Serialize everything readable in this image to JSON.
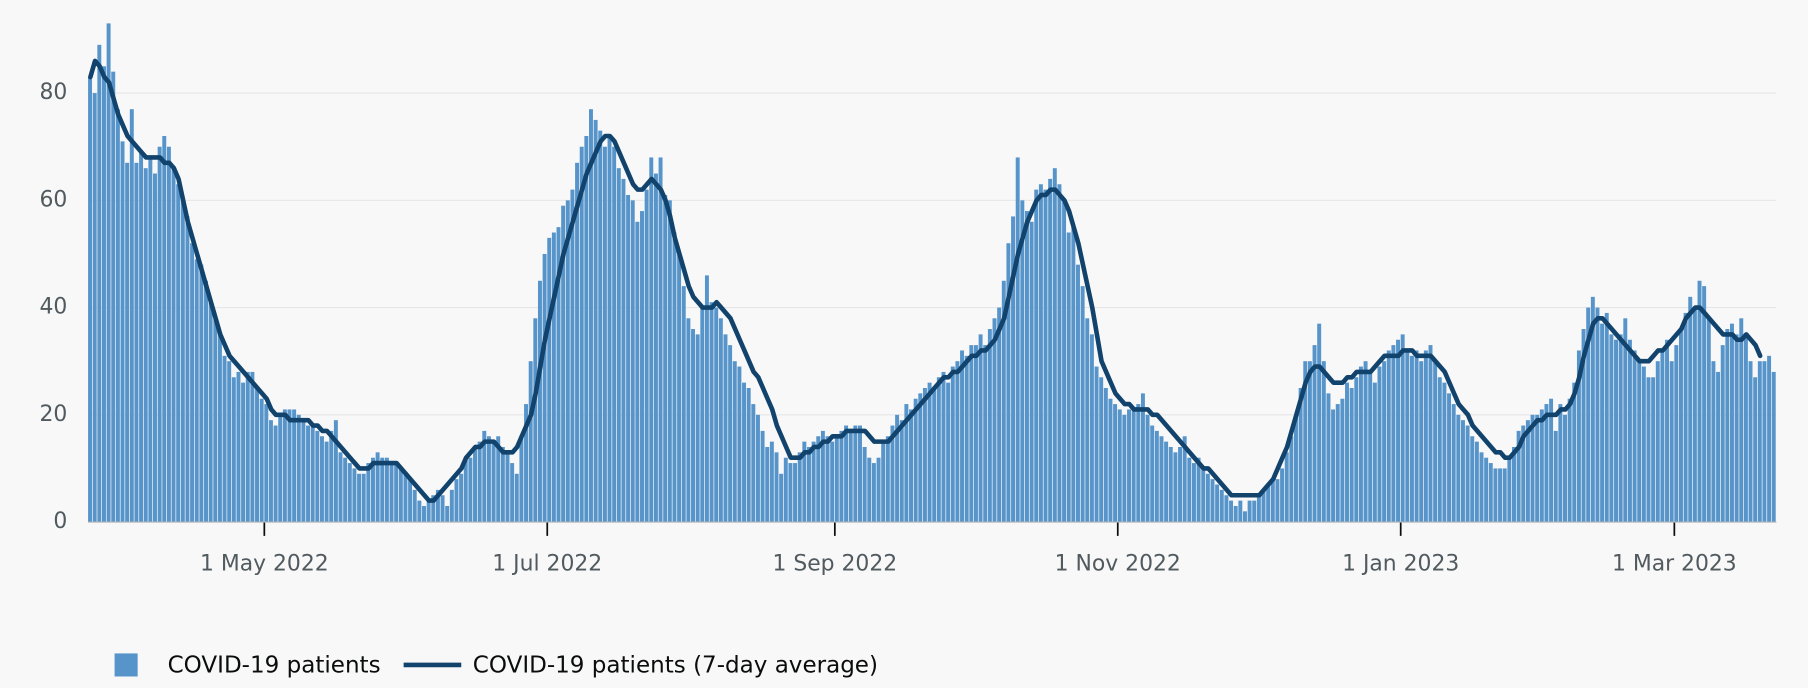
{
  "chart_data": {
    "type": "bar-line",
    "x": [
      "2022-03-24",
      "2022-03-25",
      "2022-03-26",
      "2022-03-27",
      "2022-03-28",
      "2022-03-29",
      "2022-03-30",
      "2022-03-31",
      "2022-04-01",
      "2022-04-02",
      "2022-04-03",
      "2022-04-04",
      "2022-04-05",
      "2022-04-06",
      "2022-04-07",
      "2022-04-08",
      "2022-04-09",
      "2022-04-10",
      "2022-04-11",
      "2022-04-12",
      "2022-04-13",
      "2022-04-14",
      "2022-04-15",
      "2022-04-16",
      "2022-04-17",
      "2022-04-18",
      "2022-04-19",
      "2022-04-20",
      "2022-04-21",
      "2022-04-22",
      "2022-04-23",
      "2022-04-24",
      "2022-04-25",
      "2022-04-26",
      "2022-04-27",
      "2022-04-28",
      "2022-04-29",
      "2022-04-30",
      "2022-05-01",
      "2022-05-02",
      "2022-05-03",
      "2022-05-04",
      "2022-05-05",
      "2022-05-06",
      "2022-05-07",
      "2022-05-08",
      "2022-05-09",
      "2022-05-10",
      "2022-05-11",
      "2022-05-12",
      "2022-05-13",
      "2022-05-14",
      "2022-05-15",
      "2022-05-16",
      "2022-05-17",
      "2022-05-18",
      "2022-05-19",
      "2022-05-20",
      "2022-05-21",
      "2022-05-22",
      "2022-05-23",
      "2022-05-24",
      "2022-05-25",
      "2022-05-26",
      "2022-05-27",
      "2022-05-28",
      "2022-05-29",
      "2022-05-30",
      "2022-05-31",
      "2022-06-01",
      "2022-06-02",
      "2022-06-03",
      "2022-06-04",
      "2022-06-05",
      "2022-06-06",
      "2022-06-07",
      "2022-06-08",
      "2022-06-09",
      "2022-06-10",
      "2022-06-11",
      "2022-06-12",
      "2022-06-13",
      "2022-06-14",
      "2022-06-15",
      "2022-06-16",
      "2022-06-17",
      "2022-06-18",
      "2022-06-19",
      "2022-06-20",
      "2022-06-21",
      "2022-06-22",
      "2022-06-23",
      "2022-06-24",
      "2022-06-25",
      "2022-06-26",
      "2022-06-27",
      "2022-06-28",
      "2022-06-29",
      "2022-06-30",
      "2022-07-01",
      "2022-07-02",
      "2022-07-03",
      "2022-07-04",
      "2022-07-05",
      "2022-07-06",
      "2022-07-07",
      "2022-07-08",
      "2022-07-09",
      "2022-07-10",
      "2022-07-11",
      "2022-07-12",
      "2022-07-13",
      "2022-07-14",
      "2022-07-15",
      "2022-07-16",
      "2022-07-17",
      "2022-07-18",
      "2022-07-19",
      "2022-07-20",
      "2022-07-21",
      "2022-07-22",
      "2022-07-23",
      "2022-07-24",
      "2022-07-25",
      "2022-07-26",
      "2022-07-27",
      "2022-07-28",
      "2022-07-29",
      "2022-07-30",
      "2022-07-31",
      "2022-08-01",
      "2022-08-02",
      "2022-08-03",
      "2022-08-04",
      "2022-08-05",
      "2022-08-06",
      "2022-08-07",
      "2022-08-08",
      "2022-08-09",
      "2022-08-10",
      "2022-08-11",
      "2022-08-12",
      "2022-08-13",
      "2022-08-14",
      "2022-08-15",
      "2022-08-16",
      "2022-08-17",
      "2022-08-18",
      "2022-08-19",
      "2022-08-20",
      "2022-08-21",
      "2022-08-22",
      "2022-08-23",
      "2022-08-24",
      "2022-08-25",
      "2022-08-26",
      "2022-08-27",
      "2022-08-28",
      "2022-08-29",
      "2022-08-30",
      "2022-08-31",
      "2022-09-01",
      "2022-09-02",
      "2022-09-03",
      "2022-09-04",
      "2022-09-05",
      "2022-09-06",
      "2022-09-07",
      "2022-09-08",
      "2022-09-09",
      "2022-09-10",
      "2022-09-11",
      "2022-09-12",
      "2022-09-13",
      "2022-09-14",
      "2022-09-15",
      "2022-09-16",
      "2022-09-17",
      "2022-09-18",
      "2022-09-19",
      "2022-09-20",
      "2022-09-21",
      "2022-09-22",
      "2022-09-23",
      "2022-09-24",
      "2022-09-25",
      "2022-09-26",
      "2022-09-27",
      "2022-09-28",
      "2022-09-29",
      "2022-09-30",
      "2022-10-01",
      "2022-10-02",
      "2022-10-03",
      "2022-10-04",
      "2022-10-05",
      "2022-10-06",
      "2022-10-07",
      "2022-10-08",
      "2022-10-09",
      "2022-10-10",
      "2022-10-11",
      "2022-10-12",
      "2022-10-13",
      "2022-10-14",
      "2022-10-15",
      "2022-10-16",
      "2022-10-17",
      "2022-10-18",
      "2022-10-19",
      "2022-10-20",
      "2022-10-21",
      "2022-10-22",
      "2022-10-23",
      "2022-10-24",
      "2022-10-25",
      "2022-10-26",
      "2022-10-27",
      "2022-10-28",
      "2022-10-29",
      "2022-10-30",
      "2022-10-31",
      "2022-11-01",
      "2022-11-02",
      "2022-11-03",
      "2022-11-04",
      "2022-11-05",
      "2022-11-06",
      "2022-11-07",
      "2022-11-08",
      "2022-11-09",
      "2022-11-10",
      "2022-11-11",
      "2022-11-12",
      "2022-11-13",
      "2022-11-14",
      "2022-11-15",
      "2022-11-16",
      "2022-11-17",
      "2022-11-18",
      "2022-11-19",
      "2022-11-20",
      "2022-11-21",
      "2022-11-22",
      "2022-11-23",
      "2022-11-24",
      "2022-11-25",
      "2022-11-26",
      "2022-11-27",
      "2022-11-28",
      "2022-11-29",
      "2022-11-30",
      "2022-12-01",
      "2022-12-02",
      "2022-12-03",
      "2022-12-04",
      "2022-12-05",
      "2022-12-06",
      "2022-12-07",
      "2022-12-08",
      "2022-12-09",
      "2022-12-10",
      "2022-12-11",
      "2022-12-12",
      "2022-12-13",
      "2022-12-14",
      "2022-12-15",
      "2022-12-16",
      "2022-12-17",
      "2022-12-18",
      "2022-12-19",
      "2022-12-20",
      "2022-12-21",
      "2022-12-22",
      "2022-12-23",
      "2022-12-24",
      "2022-12-25",
      "2022-12-26",
      "2022-12-27",
      "2022-12-28",
      "2022-12-29",
      "2022-12-30",
      "2022-12-31",
      "2023-01-01",
      "2023-01-02",
      "2023-01-03",
      "2023-01-04",
      "2023-01-05",
      "2023-01-06",
      "2023-01-07",
      "2023-01-08",
      "2023-01-09",
      "2023-01-10",
      "2023-01-11",
      "2023-01-12",
      "2023-01-13",
      "2023-01-14",
      "2023-01-15",
      "2023-01-16",
      "2023-01-17",
      "2023-01-18",
      "2023-01-19",
      "2023-01-20",
      "2023-01-21",
      "2023-01-22",
      "2023-01-23",
      "2023-01-24",
      "2023-01-25",
      "2023-01-26",
      "2023-01-27",
      "2023-01-28",
      "2023-01-29",
      "2023-01-30",
      "2023-01-31",
      "2023-02-01",
      "2023-02-02",
      "2023-02-03",
      "2023-02-04",
      "2023-02-05",
      "2023-02-06",
      "2023-02-07",
      "2023-02-08",
      "2023-02-09",
      "2023-02-10",
      "2023-02-11",
      "2023-02-12",
      "2023-02-13",
      "2023-02-14",
      "2023-02-15",
      "2023-02-16",
      "2023-02-17",
      "2023-02-18",
      "2023-02-19",
      "2023-02-20",
      "2023-02-21",
      "2023-02-22",
      "2023-02-23",
      "2023-02-24",
      "2023-02-25",
      "2023-02-26",
      "2023-02-27",
      "2023-02-28",
      "2023-03-01",
      "2023-03-02",
      "2023-03-03",
      "2023-03-04",
      "2023-03-05",
      "2023-03-06",
      "2023-03-07",
      "2023-03-08",
      "2023-03-09",
      "2023-03-10",
      "2023-03-11",
      "2023-03-12",
      "2023-03-13",
      "2023-03-14",
      "2023-03-15",
      "2023-03-16",
      "2023-03-17",
      "2023-03-18",
      "2023-03-19",
      "2023-03-20",
      "2023-03-21",
      "2023-03-22"
    ],
    "series": [
      {
        "name": "COVID-19 patients",
        "type": "bar",
        "color": "#5694ca",
        "values": [
          83,
          80,
          89,
          85,
          93,
          84,
          77,
          71,
          67,
          77,
          67,
          69,
          66,
          68,
          65,
          70,
          72,
          70,
          66,
          63,
          60,
          57,
          52,
          49,
          48,
          45,
          41,
          38,
          35,
          31,
          30,
          27,
          28,
          26,
          28,
          28,
          25,
          23,
          22,
          19,
          18,
          20,
          21,
          21,
          21,
          20,
          19,
          18,
          18,
          17,
          16,
          15,
          17,
          19,
          13,
          12,
          11,
          10,
          9,
          9,
          11,
          12,
          13,
          12,
          12,
          11,
          11,
          10,
          9,
          8,
          6,
          4,
          3,
          4,
          5,
          6,
          5,
          3,
          6,
          8,
          9,
          12,
          12,
          14,
          15,
          17,
          16,
          15,
          16,
          14,
          13,
          11,
          9,
          16,
          22,
          30,
          38,
          45,
          50,
          53,
          54,
          55,
          59,
          60,
          62,
          67,
          70,
          72,
          77,
          75,
          73,
          70,
          72,
          70,
          66,
          64,
          61,
          60,
          56,
          58,
          62,
          68,
          65,
          68,
          61,
          60,
          54,
          50,
          44,
          38,
          36,
          35,
          40,
          46,
          41,
          40,
          38,
          35,
          33,
          30,
          29,
          26,
          25,
          22,
          20,
          17,
          14,
          15,
          13,
          9,
          12,
          11,
          11,
          13,
          15,
          14,
          15,
          16,
          17,
          16,
          15,
          16,
          17,
          18,
          17,
          18,
          18,
          14,
          12,
          11,
          12,
          15,
          16,
          18,
          20,
          19,
          22,
          21,
          23,
          24,
          25,
          26,
          25,
          27,
          28,
          26,
          29,
          30,
          32,
          31,
          33,
          33,
          35,
          33,
          36,
          38,
          40,
          45,
          52,
          57,
          68,
          60,
          58,
          56,
          62,
          63,
          62,
          64,
          66,
          63,
          60,
          54,
          55,
          48,
          44,
          38,
          35,
          29,
          27,
          25,
          23,
          22,
          21,
          20,
          21,
          21,
          22,
          24,
          20,
          18,
          17,
          16,
          15,
          14,
          13,
          14,
          16,
          12,
          11,
          12,
          10,
          9,
          8,
          7,
          6,
          5,
          4,
          3,
          4,
          2,
          4,
          4,
          5,
          6,
          7,
          8,
          8,
          10,
          13,
          16,
          20,
          25,
          30,
          30,
          33,
          37,
          30,
          24,
          21,
          22,
          23,
          26,
          25,
          27,
          29,
          30,
          28,
          26,
          29,
          30,
          32,
          33,
          34,
          35,
          32,
          31,
          32,
          30,
          32,
          33,
          30,
          27,
          26,
          24,
          22,
          20,
          19,
          18,
          16,
          15,
          13,
          12,
          11,
          10,
          10,
          10,
          12,
          14,
          17,
          18,
          19,
          20,
          20,
          21,
          22,
          23,
          17,
          22,
          20,
          23,
          26,
          32,
          36,
          40,
          42,
          40,
          37,
          39,
          35,
          34,
          35,
          38,
          34,
          32,
          30,
          29,
          27,
          27,
          30,
          32,
          34,
          30,
          33,
          36,
          39,
          42,
          40,
          45,
          44,
          38,
          30,
          28,
          33,
          36,
          37,
          35,
          38,
          35,
          30,
          27,
          30,
          30,
          31,
          28
        ]
      },
      {
        "name": "COVID-19 patients (7-day average)",
        "type": "line",
        "color": "#12436d",
        "values": [
          83,
          86,
          85,
          83,
          82,
          79,
          76,
          74,
          72,
          71,
          70,
          69,
          68,
          68,
          68,
          68,
          67,
          67,
          66,
          64,
          60,
          56,
          53,
          50,
          47,
          44,
          41,
          38,
          35,
          33,
          31,
          30,
          29,
          28,
          27,
          26,
          25,
          24,
          23,
          21,
          20,
          20,
          20,
          19,
          19,
          19,
          19,
          19,
          18,
          18,
          17,
          17,
          16,
          15,
          14,
          13,
          12,
          11,
          10,
          10,
          10,
          11,
          11,
          11,
          11,
          11,
          11,
          10,
          9,
          8,
          7,
          6,
          5,
          4,
          4,
          5,
          6,
          7,
          8,
          9,
          10,
          12,
          13,
          14,
          14,
          15,
          15,
          15,
          14,
          13,
          13,
          13,
          14,
          16,
          18,
          20,
          24,
          29,
          34,
          38,
          42,
          46,
          50,
          53,
          56,
          59,
          62,
          65,
          67,
          69,
          71,
          72,
          72,
          71,
          69,
          67,
          65,
          63,
          62,
          62,
          63,
          64,
          63,
          62,
          60,
          57,
          53,
          50,
          47,
          44,
          42,
          41,
          40,
          40,
          40,
          41,
          40,
          39,
          38,
          36,
          34,
          32,
          30,
          28,
          27,
          25,
          23,
          21,
          18,
          16,
          14,
          12,
          12,
          12,
          13,
          13,
          14,
          14,
          15,
          15,
          16,
          16,
          16,
          17,
          17,
          17,
          17,
          17,
          16,
          15,
          15,
          15,
          15,
          16,
          17,
          18,
          19,
          20,
          21,
          22,
          23,
          24,
          25,
          26,
          27,
          27,
          28,
          28,
          29,
          30,
          31,
          31,
          32,
          32,
          33,
          34,
          36,
          38,
          42,
          46,
          50,
          53,
          56,
          58,
          60,
          61,
          61,
          62,
          62,
          61,
          60,
          58,
          55,
          52,
          48,
          44,
          40,
          35,
          30,
          28,
          26,
          24,
          23,
          22,
          22,
          21,
          21,
          21,
          21,
          20,
          20,
          19,
          18,
          17,
          16,
          15,
          14,
          13,
          12,
          11,
          10,
          10,
          9,
          8,
          7,
          6,
          5,
          5,
          5,
          5,
          5,
          5,
          5,
          6,
          7,
          8,
          10,
          12,
          14,
          17,
          20,
          23,
          26,
          28,
          29,
          29,
          28,
          27,
          26,
          26,
          26,
          27,
          27,
          28,
          28,
          28,
          28,
          29,
          30,
          31,
          31,
          31,
          31,
          32,
          32,
          32,
          31,
          31,
          31,
          31,
          30,
          29,
          28,
          26,
          24,
          22,
          21,
          20,
          18,
          17,
          16,
          15,
          14,
          13,
          13,
          12,
          12,
          13,
          14,
          16,
          17,
          18,
          19,
          19,
          20,
          20,
          20,
          21,
          21,
          22,
          24,
          27,
          31,
          34,
          37,
          38,
          38,
          37,
          36,
          35,
          34,
          33,
          32,
          31,
          30,
          30,
          30,
          31,
          32,
          32,
          33,
          34,
          35,
          36,
          38,
          39,
          40,
          40,
          39,
          38,
          37,
          36,
          35,
          35,
          35,
          34,
          34,
          35,
          34,
          33,
          31,
          null,
          null,
          null
        ]
      }
    ],
    "xlim": [
      "2022-03-24",
      "2023-03-23"
    ],
    "xticks": [
      {
        "value": "2022-05-01",
        "label": "1 May 2022"
      },
      {
        "value": "2022-07-01",
        "label": "1 Jul 2022"
      },
      {
        "value": "2022-09-01",
        "label": "1 Sep 2022"
      },
      {
        "value": "2022-11-01",
        "label": "1 Nov 2022"
      },
      {
        "value": "2023-01-01",
        "label": "1 Jan 2023"
      },
      {
        "value": "2023-03-01",
        "label": "1 Mar 2023"
      }
    ],
    "ylim": [
      0,
      95
    ],
    "yticks": [
      0,
      20,
      40,
      60,
      80
    ],
    "grid": true,
    "legend": "bottom-left"
  }
}
